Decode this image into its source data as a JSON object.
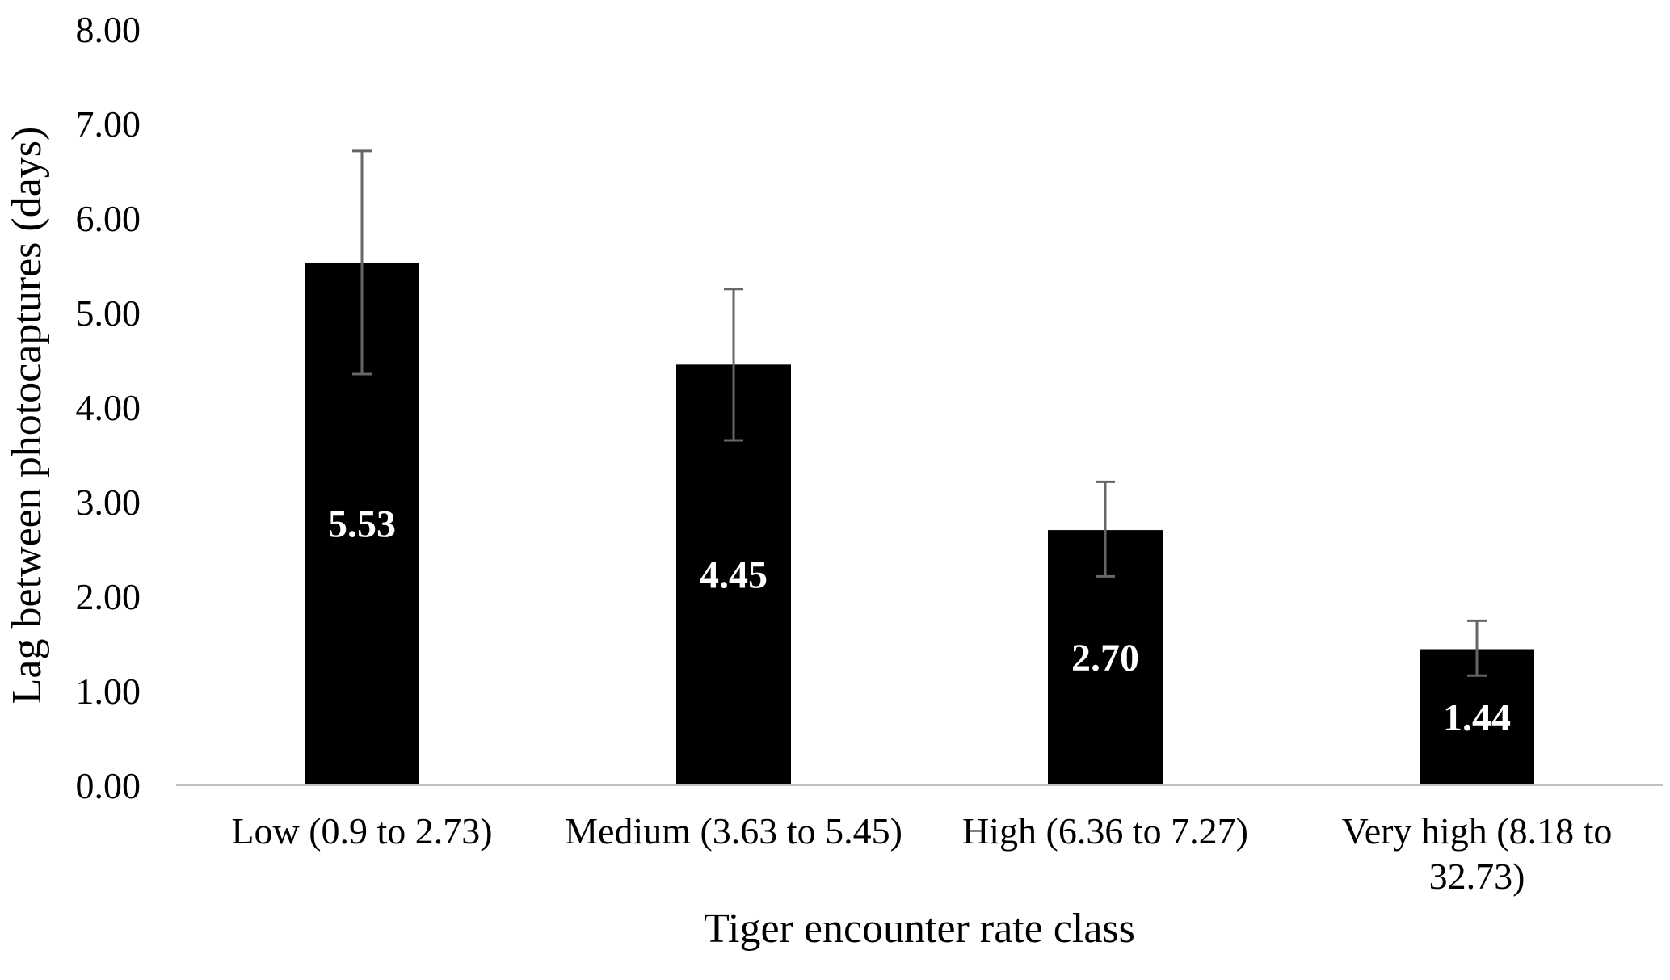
{
  "chart_data": {
    "type": "bar",
    "categories": [
      [
        "Low (0.9 to 2.73)"
      ],
      [
        "Medium (3.63 to 5.45)"
      ],
      [
        "High (6.36 to 7.27)"
      ],
      [
        "Very high (8.18 to",
        "32.73)"
      ]
    ],
    "values": [
      5.53,
      4.45,
      2.7,
      1.44
    ],
    "data_labels": [
      "5.53",
      "4.45",
      "2.70",
      "1.44"
    ],
    "error_bars": [
      {
        "lower": 4.35,
        "upper": 6.71
      },
      {
        "lower": 3.65,
        "upper": 5.25
      },
      {
        "lower": 2.21,
        "upper": 3.21
      },
      {
        "lower": 1.16,
        "upper": 1.74
      }
    ],
    "ylim": [
      0,
      8
    ],
    "yticks": [
      "0.00",
      "1.00",
      "2.00",
      "3.00",
      "4.00",
      "5.00",
      "6.00",
      "7.00",
      "8.00"
    ],
    "xlabel": "Tiger encounter rate class",
    "ylabel": "Lag between photocaptures (days)",
    "title": "",
    "grid": false,
    "colors": {
      "bar": "#000000",
      "error_bar": "#666666",
      "axis": "#bfbfbf",
      "data_label": "#ffffff"
    }
  }
}
